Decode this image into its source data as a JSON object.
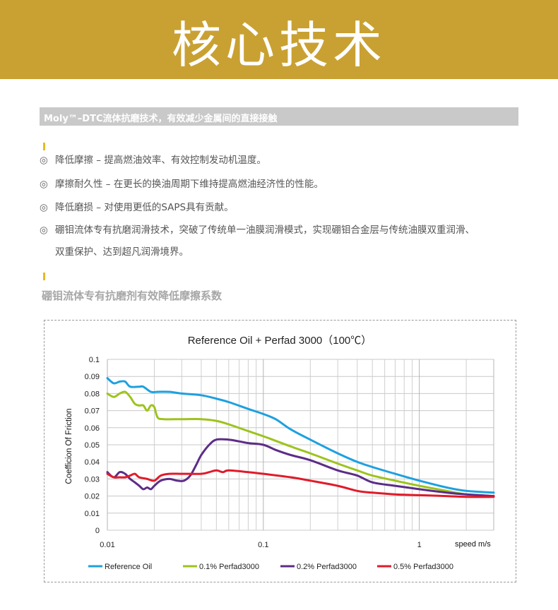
{
  "header": {
    "title": "核心技术"
  },
  "section": {
    "bar_title": "Moly™–DTC流体抗磨技术，有效减少金属间的直接接触",
    "bullet_icon": "◎",
    "items": [
      "降低摩擦 – 提高燃油效率、有效控制发动机温度。",
      "摩擦耐久性 – 在更长的换油周期下维持提高燃油经济性的性能。",
      "降低磨损 – 对使用更低的SAPS具有贡献。",
      "硼钼流体专有抗磨润滑技术，突破了传统单一油膜润滑模式，实现硼钼合金层与传统油膜双重润滑、"
    ],
    "item4_cont": "双重保护、达到超凡润滑境界。",
    "subheading": "硼钼流体专有抗磨剂有效降低摩擦系数"
  },
  "colors": {
    "banner": "#c9a132",
    "bar": "#c9c9c9",
    "marker": "#e8b923"
  },
  "chart_data": {
    "type": "line",
    "title": "Reference Oil + Perfad 3000（100℃）",
    "xlabel": "speed m/s",
    "ylabel": "Coefficion Of Friction",
    "x_scale": "log",
    "xlim": [
      0.01,
      3
    ],
    "ylim": [
      0,
      0.1
    ],
    "x_ticks": [
      "0.01",
      "0.1",
      "1"
    ],
    "y_ticks": [
      "0",
      "0.01",
      "0.02",
      "0.03",
      "0.04",
      "0.05",
      "0.06",
      "0.07",
      "0.08",
      "0.09",
      "0.1"
    ],
    "grid": true,
    "legend_position": "bottom",
    "series": [
      {
        "name": "Reference Oil",
        "color": "#1ea0e0",
        "points": [
          [
            0.01,
            0.089
          ],
          [
            0.011,
            0.086
          ],
          [
            0.012,
            0.087
          ],
          [
            0.013,
            0.087
          ],
          [
            0.014,
            0.084
          ],
          [
            0.016,
            0.084
          ],
          [
            0.017,
            0.084
          ],
          [
            0.019,
            0.081
          ],
          [
            0.021,
            0.081
          ],
          [
            0.025,
            0.081
          ],
          [
            0.03,
            0.08
          ],
          [
            0.04,
            0.079
          ],
          [
            0.05,
            0.077
          ],
          [
            0.06,
            0.075
          ],
          [
            0.08,
            0.071
          ],
          [
            0.1,
            0.068
          ],
          [
            0.12,
            0.065
          ],
          [
            0.15,
            0.059
          ],
          [
            0.2,
            0.053
          ],
          [
            0.3,
            0.045
          ],
          [
            0.4,
            0.04
          ],
          [
            0.5,
            0.037
          ],
          [
            0.7,
            0.033
          ],
          [
            1,
            0.029
          ],
          [
            1.5,
            0.025
          ],
          [
            2,
            0.023
          ],
          [
            3,
            0.022
          ]
        ]
      },
      {
        "name": "0.1% Perfad3000",
        "color": "#9dc31d",
        "points": [
          [
            0.01,
            0.08
          ],
          [
            0.011,
            0.078
          ],
          [
            0.012,
            0.08
          ],
          [
            0.013,
            0.081
          ],
          [
            0.014,
            0.078
          ],
          [
            0.015,
            0.074
          ],
          [
            0.016,
            0.073
          ],
          [
            0.017,
            0.073
          ],
          [
            0.018,
            0.07
          ],
          [
            0.019,
            0.073
          ],
          [
            0.02,
            0.072
          ],
          [
            0.021,
            0.066
          ],
          [
            0.023,
            0.065
          ],
          [
            0.03,
            0.065
          ],
          [
            0.04,
            0.065
          ],
          [
            0.05,
            0.064
          ],
          [
            0.06,
            0.062
          ],
          [
            0.08,
            0.058
          ],
          [
            0.1,
            0.055
          ],
          [
            0.15,
            0.049
          ],
          [
            0.2,
            0.045
          ],
          [
            0.3,
            0.039
          ],
          [
            0.4,
            0.035
          ],
          [
            0.5,
            0.032
          ],
          [
            0.7,
            0.029
          ],
          [
            1,
            0.026
          ],
          [
            1.5,
            0.023
          ],
          [
            2,
            0.021
          ],
          [
            3,
            0.02
          ]
        ]
      },
      {
        "name": "0.2% Perfad3000",
        "color": "#5c2d86",
        "points": [
          [
            0.01,
            0.034
          ],
          [
            0.011,
            0.031
          ],
          [
            0.012,
            0.034
          ],
          [
            0.013,
            0.033
          ],
          [
            0.014,
            0.03
          ],
          [
            0.015,
            0.028
          ],
          [
            0.016,
            0.026
          ],
          [
            0.017,
            0.024
          ],
          [
            0.018,
            0.025
          ],
          [
            0.019,
            0.024
          ],
          [
            0.02,
            0.026
          ],
          [
            0.022,
            0.029
          ],
          [
            0.025,
            0.03
          ],
          [
            0.028,
            0.029
          ],
          [
            0.031,
            0.029
          ],
          [
            0.034,
            0.032
          ],
          [
            0.037,
            0.038
          ],
          [
            0.04,
            0.044
          ],
          [
            0.045,
            0.05
          ],
          [
            0.05,
            0.053
          ],
          [
            0.06,
            0.053
          ],
          [
            0.07,
            0.052
          ],
          [
            0.08,
            0.051
          ],
          [
            0.1,
            0.05
          ],
          [
            0.12,
            0.047
          ],
          [
            0.15,
            0.044
          ],
          [
            0.2,
            0.041
          ],
          [
            0.3,
            0.035
          ],
          [
            0.4,
            0.032
          ],
          [
            0.5,
            0.028
          ],
          [
            0.7,
            0.026
          ],
          [
            1,
            0.024
          ],
          [
            1.5,
            0.022
          ],
          [
            2,
            0.021
          ],
          [
            3,
            0.02
          ]
        ]
      },
      {
        "name": "0.5% Perfad3000",
        "color": "#e01b2a",
        "points": [
          [
            0.01,
            0.033
          ],
          [
            0.011,
            0.031
          ],
          [
            0.012,
            0.031
          ],
          [
            0.013,
            0.031
          ],
          [
            0.014,
            0.032
          ],
          [
            0.015,
            0.033
          ],
          [
            0.016,
            0.031
          ],
          [
            0.018,
            0.03
          ],
          [
            0.02,
            0.029
          ],
          [
            0.022,
            0.032
          ],
          [
            0.025,
            0.033
          ],
          [
            0.03,
            0.033
          ],
          [
            0.04,
            0.033
          ],
          [
            0.045,
            0.034
          ],
          [
            0.05,
            0.035
          ],
          [
            0.055,
            0.034
          ],
          [
            0.06,
            0.035
          ],
          [
            0.08,
            0.034
          ],
          [
            0.1,
            0.033
          ],
          [
            0.15,
            0.031
          ],
          [
            0.2,
            0.029
          ],
          [
            0.3,
            0.026
          ],
          [
            0.4,
            0.023
          ],
          [
            0.5,
            0.022
          ],
          [
            0.7,
            0.021
          ],
          [
            1,
            0.0205
          ],
          [
            1.5,
            0.02
          ],
          [
            2,
            0.0195
          ],
          [
            3,
            0.0195
          ]
        ]
      }
    ]
  }
}
